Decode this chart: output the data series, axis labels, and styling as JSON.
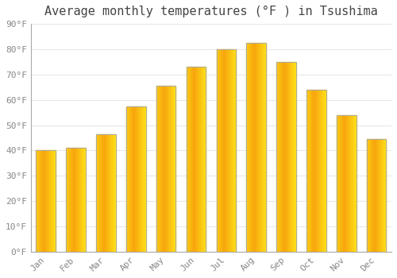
{
  "title": "Average monthly temperatures (°F ) in Tsushima",
  "months": [
    "Jan",
    "Feb",
    "Mar",
    "Apr",
    "May",
    "Jun",
    "Jul",
    "Aug",
    "Sep",
    "Oct",
    "Nov",
    "Dec"
  ],
  "values": [
    40,
    41,
    46.5,
    57.5,
    65.5,
    73,
    80,
    82.5,
    75,
    64,
    54,
    44.5
  ],
  "bar_color_left": "#F5A623",
  "bar_color_right": "#FFD060",
  "bar_edge_color": "#B8860B",
  "ylim": [
    0,
    90
  ],
  "ytick_step": 10,
  "background_color": "#FFFFFF",
  "grid_color": "#E8E8E8",
  "title_fontsize": 11,
  "tick_fontsize": 8,
  "font_family": "monospace",
  "tick_color": "#888888",
  "spine_color": "#AAAAAA"
}
